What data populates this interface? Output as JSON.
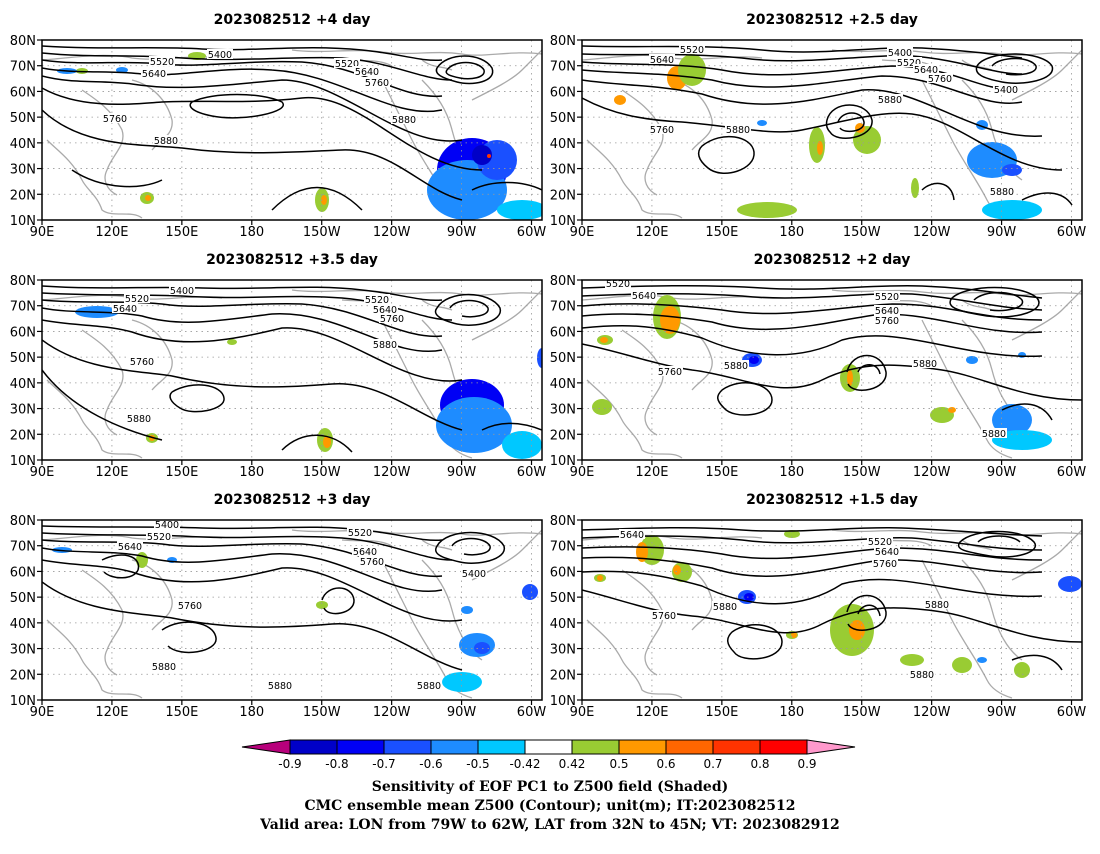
{
  "panels": [
    {
      "title": "2023082512  +4 day"
    },
    {
      "title": "2023082512  +2.5 day"
    },
    {
      "title": "2023082512  +3.5 day"
    },
    {
      "title": "2023082512  +2 day"
    },
    {
      "title": "2023082512  +3 day"
    },
    {
      "title": "2023082512  +1.5 day"
    }
  ],
  "axes": {
    "lat_labels": [
      "10N",
      "20N",
      "30N",
      "40N",
      "50N",
      "60N",
      "70N",
      "80N"
    ],
    "lon_labels": [
      "90E",
      "120E",
      "150E",
      "180",
      "150W",
      "120W",
      "90W",
      "60W"
    ]
  },
  "contour_labels": {
    "p1": [
      "5400",
      "5520",
      "5640",
      "5520",
      "5640",
      "5760",
      "5760",
      "5880",
      "5880"
    ],
    "p2": [
      "5400",
      "5520",
      "5640",
      "5520",
      "5640",
      "5760",
      "5400",
      "5880",
      "5760",
      "5880",
      "5880"
    ],
    "p3": [
      "5400",
      "5520",
      "5640",
      "5520",
      "5640",
      "5760",
      "5880",
      "5760",
      "5880"
    ],
    "p4": [
      "5520",
      "5640",
      "5520",
      "5640",
      "5760",
      "5760",
      "5880",
      "5880",
      "5880"
    ],
    "p5": [
      "5400",
      "5520",
      "5640",
      "5520",
      "5640",
      "5760",
      "5400",
      "5760",
      "5880",
      "5880",
      "5880"
    ],
    "p6": [
      "5640",
      "5520",
      "5640",
      "5760",
      "5760",
      "5880",
      "5880",
      "5880"
    ]
  },
  "colorbar": {
    "labels": [
      "-0.9",
      "-0.8",
      "-0.7",
      "-0.6",
      "-0.5",
      "-0.42",
      "0.42",
      "0.5",
      "0.6",
      "0.7",
      "0.8",
      "0.9"
    ],
    "colors": [
      "#b7007b",
      "#0000c8",
      "#0000f5",
      "#1a50ff",
      "#1e8cff",
      "#00c8ff",
      "#ffffff",
      "#99cc33",
      "#ff9900",
      "#ff6600",
      "#ff3300",
      "#ff0000",
      "#ff99cc"
    ]
  },
  "caption": {
    "line1": "Sensitivity of EOF PC1 to Z500 field (Shaded)",
    "line2": "CMC ensemble mean Z500 (Contour); unit(m); IT:2023082512",
    "line3": "Valid area: LON from 79W to 62W, LAT from 32N to 45N; VT: 2023082912"
  }
}
